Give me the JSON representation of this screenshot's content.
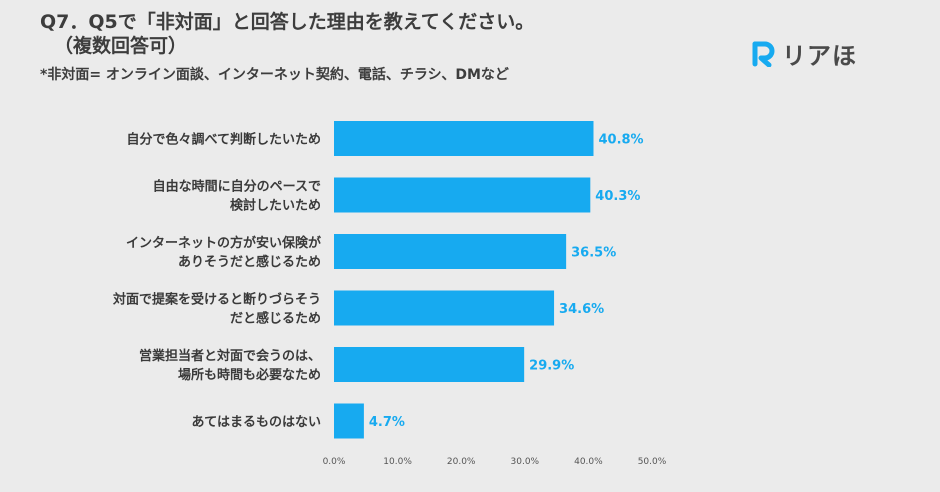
{
  "title": {
    "line1": "Q7．Q5で「非対面」と回答した理由を教えてください。",
    "line2": "（複数回答可）"
  },
  "note": "*非対面= オンライン面談、インターネット契約、電話、チラシ、DMなど",
  "logo": {
    "text": "リアほ",
    "mark": "R",
    "color": "#17aaf0"
  },
  "colors": {
    "bar": "#17aaf0",
    "value": "#17aaf0",
    "background": "#ebebeb"
  },
  "chart_data": {
    "type": "bar",
    "orientation": "horizontal",
    "categories": [
      [
        "自分で色々調べて判断したいため"
      ],
      [
        "自由な時間に自分のペースで",
        "検討したいため"
      ],
      [
        "インターネットの方が安い保険が",
        "ありそうだと感じるため"
      ],
      [
        "対面で提案を受けると断りづらそう",
        "だと感じるため"
      ],
      [
        "営業担当者と対面で会うのは、",
        "場所も時間も必要なため"
      ],
      [
        "あてはまるものはない"
      ]
    ],
    "values": [
      40.8,
      40.3,
      36.5,
      34.6,
      29.9,
      4.7
    ],
    "value_labels": [
      "40.8%",
      "40.3%",
      "36.5%",
      "34.6%",
      "29.9%",
      "4.7%"
    ],
    "xlim": [
      0,
      50
    ],
    "ticks": [
      0,
      10,
      20,
      30,
      40,
      50
    ],
    "tick_labels": [
      "0.0%",
      "10.0%",
      "20.0%",
      "30.0%",
      "40.0%",
      "50.0%"
    ],
    "grid": false,
    "legend": "none"
  }
}
